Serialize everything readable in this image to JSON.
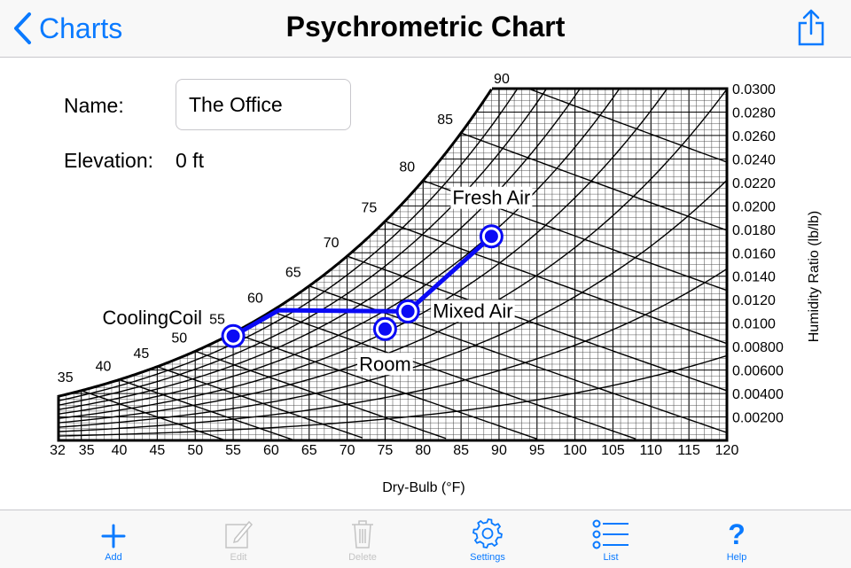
{
  "nav": {
    "back_label": "Charts",
    "title": "Psychrometric Chart"
  },
  "form": {
    "name_label": "Name:",
    "name_value": "The Office",
    "elevation_label": "Elevation:",
    "elevation_value": "0 ft"
  },
  "toolbar": {
    "items": [
      {
        "label": "Add",
        "icon": "plus-icon",
        "enabled": true
      },
      {
        "label": "Edit",
        "icon": "edit-icon",
        "enabled": false
      },
      {
        "label": "Delete",
        "icon": "trash-icon",
        "enabled": false
      },
      {
        "label": "Settings",
        "icon": "gear-icon",
        "enabled": true
      },
      {
        "label": "List",
        "icon": "list-icon",
        "enabled": true
      },
      {
        "label": "Help",
        "icon": "question-icon",
        "enabled": true
      }
    ]
  },
  "colors": {
    "accent": "#0a7aff",
    "process_line": "#0a0af5",
    "disabled": "#c4c4c4"
  },
  "chart_data": {
    "type": "psychrometric",
    "xlabel": "Dry-Bulb (°F)",
    "ylabel": "Humidity Ratio (lb/lb)",
    "xlim": [
      32,
      120
    ],
    "ylim": [
      0,
      0.03
    ],
    "x_ticks": [
      "32",
      "35",
      "40",
      "45",
      "50",
      "55",
      "60",
      "65",
      "70",
      "75",
      "80",
      "85",
      "90",
      "95",
      "100",
      "105",
      "110",
      "115",
      "120"
    ],
    "y_ticks": [
      "0.00200",
      "0.00400",
      "0.00600",
      "0.00800",
      "0.0100",
      "0.0120",
      "0.0140",
      "0.0160",
      "0.0180",
      "0.0200",
      "0.0220",
      "0.0240",
      "0.0260",
      "0.0280",
      "0.0300"
    ],
    "wet_bulb_labels": [
      "35",
      "40",
      "45",
      "50",
      "55",
      "60",
      "65",
      "70",
      "75",
      "80",
      "85",
      "90"
    ],
    "points": [
      {
        "name": "Fresh Air",
        "db": 89,
        "w": 0.0174
      },
      {
        "name": "Mixed Air",
        "db": 78,
        "w": 0.011
      },
      {
        "name": "Room",
        "db": 75,
        "w": 0.0095
      },
      {
        "name": "CoolingCoil",
        "db": 55,
        "w": 0.0089
      }
    ],
    "process_path": [
      {
        "db": 55,
        "w": 0.0089
      },
      {
        "db": 61,
        "w": 0.0111
      },
      {
        "db": 78,
        "w": 0.011
      },
      {
        "db": 89,
        "w": 0.0174
      }
    ]
  }
}
